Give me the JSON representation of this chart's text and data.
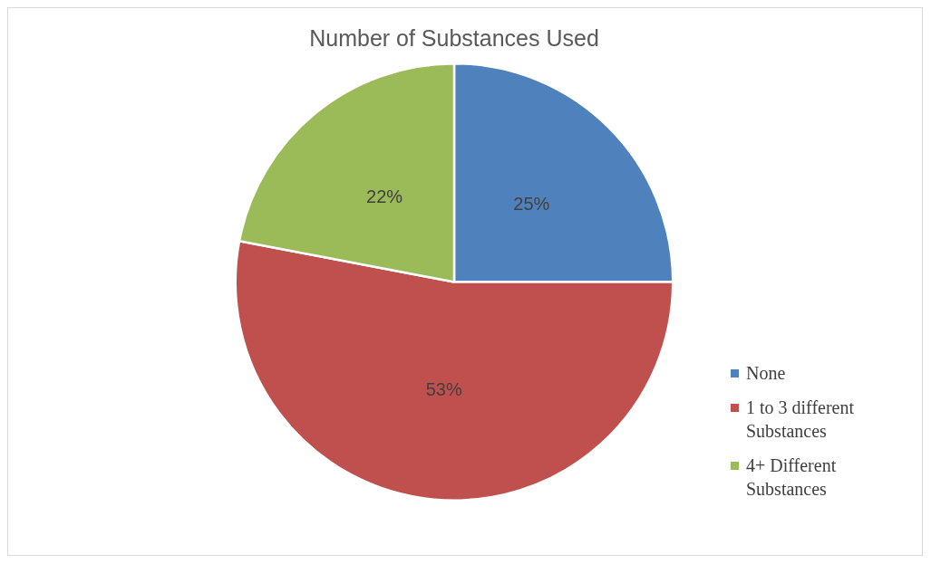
{
  "chart_data": {
    "type": "pie",
    "title": "Number of Substances Used",
    "categories": [
      "None",
      "1 to 3 different Substances",
      "4+ Different Substances"
    ],
    "values": [
      25,
      53,
      22
    ],
    "colors": [
      "#4f81bd",
      "#c0504d",
      "#9bbb59"
    ],
    "value_labels": [
      "25%",
      "53%",
      "22%"
    ],
    "legend": "right"
  }
}
